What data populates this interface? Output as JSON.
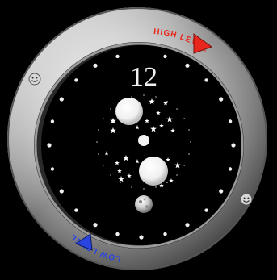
{
  "dial": {
    "number": "12",
    "number_color": "#f2f2f2"
  },
  "high_level": {
    "text": "HIGH LEVEL",
    "color": "#e8281e",
    "indicator_icon": "red-triangle-pointer"
  },
  "low_level": {
    "text": "LOW LEVEL",
    "color": "#2a44e0",
    "indicator_icon": "blue-triangle-pointer"
  },
  "ring": {
    "color": "#c9c9c9",
    "face_icons": [
      "smiley-face-icon",
      "smiley-face-icon"
    ]
  },
  "face": {
    "background": "#000000",
    "dot_color": "#f0f0f0"
  }
}
